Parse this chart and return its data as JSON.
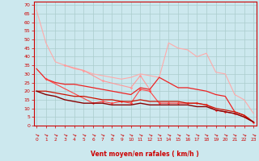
{
  "bg_color": "#cce8ee",
  "grid_color": "#aacccc",
  "xlabel": "Vent moyen/en rafales ( km/h )",
  "xlabel_color": "#cc0000",
  "tick_color": "#cc0000",
  "x_ticks": [
    0,
    1,
    2,
    3,
    4,
    5,
    6,
    7,
    8,
    9,
    10,
    11,
    12,
    13,
    14,
    15,
    16,
    17,
    18,
    19,
    20,
    21,
    22,
    23
  ],
  "y_ticks": [
    0,
    5,
    10,
    15,
    20,
    25,
    30,
    35,
    40,
    45,
    50,
    55,
    60,
    65,
    70
  ],
  "ylim": [
    0,
    72
  ],
  "xlim": [
    -0.3,
    23.3
  ],
  "series": [
    {
      "color": "#ffaaaa",
      "linewidth": 0.8,
      "marker": null,
      "data": [
        67,
        48,
        37,
        35,
        33,
        32,
        30,
        29,
        28,
        27,
        28,
        30,
        29,
        28,
        48,
        45,
        44,
        40,
        42,
        31,
        30,
        18,
        15,
        7
      ]
    },
    {
      "color": "#ff9999",
      "linewidth": 0.8,
      "marker": "D",
      "markersize": 1.8,
      "data": [
        null,
        null,
        null,
        35,
        null,
        32,
        null,
        26,
        null,
        null,
        22,
        29,
        21,
        null,
        null,
        null,
        null,
        null,
        null,
        null,
        null,
        null,
        null,
        null
      ]
    },
    {
      "color": "#ee2222",
      "linewidth": 0.9,
      "marker": null,
      "data": [
        33,
        27,
        25,
        24,
        24,
        23,
        22,
        21,
        20,
        19,
        18,
        22,
        21,
        28,
        25,
        22,
        22,
        21,
        20,
        18,
        17,
        8,
        6,
        2
      ]
    },
    {
      "color": "#ff4444",
      "linewidth": 0.8,
      "marker": "D",
      "markersize": 1.8,
      "data": [
        null,
        27,
        null,
        null,
        null,
        null,
        13,
        14,
        13,
        14,
        13,
        21,
        20,
        13,
        13,
        13,
        13,
        13,
        12,
        9,
        8,
        7,
        5,
        2
      ]
    },
    {
      "color": "#cc1100",
      "linewidth": 0.9,
      "marker": null,
      "data": [
        20,
        20,
        19,
        18,
        17,
        17,
        16,
        15,
        15,
        14,
        14,
        15,
        14,
        14,
        14,
        14,
        13,
        13,
        12,
        10,
        9,
        8,
        6,
        2
      ]
    },
    {
      "color": "#880000",
      "linewidth": 1.0,
      "marker": null,
      "data": [
        20,
        18,
        17,
        15,
        14,
        13,
        13,
        13,
        12,
        12,
        12,
        13,
        12,
        12,
        12,
        12,
        12,
        11,
        11,
        9,
        8,
        7,
        5,
        2
      ]
    }
  ]
}
